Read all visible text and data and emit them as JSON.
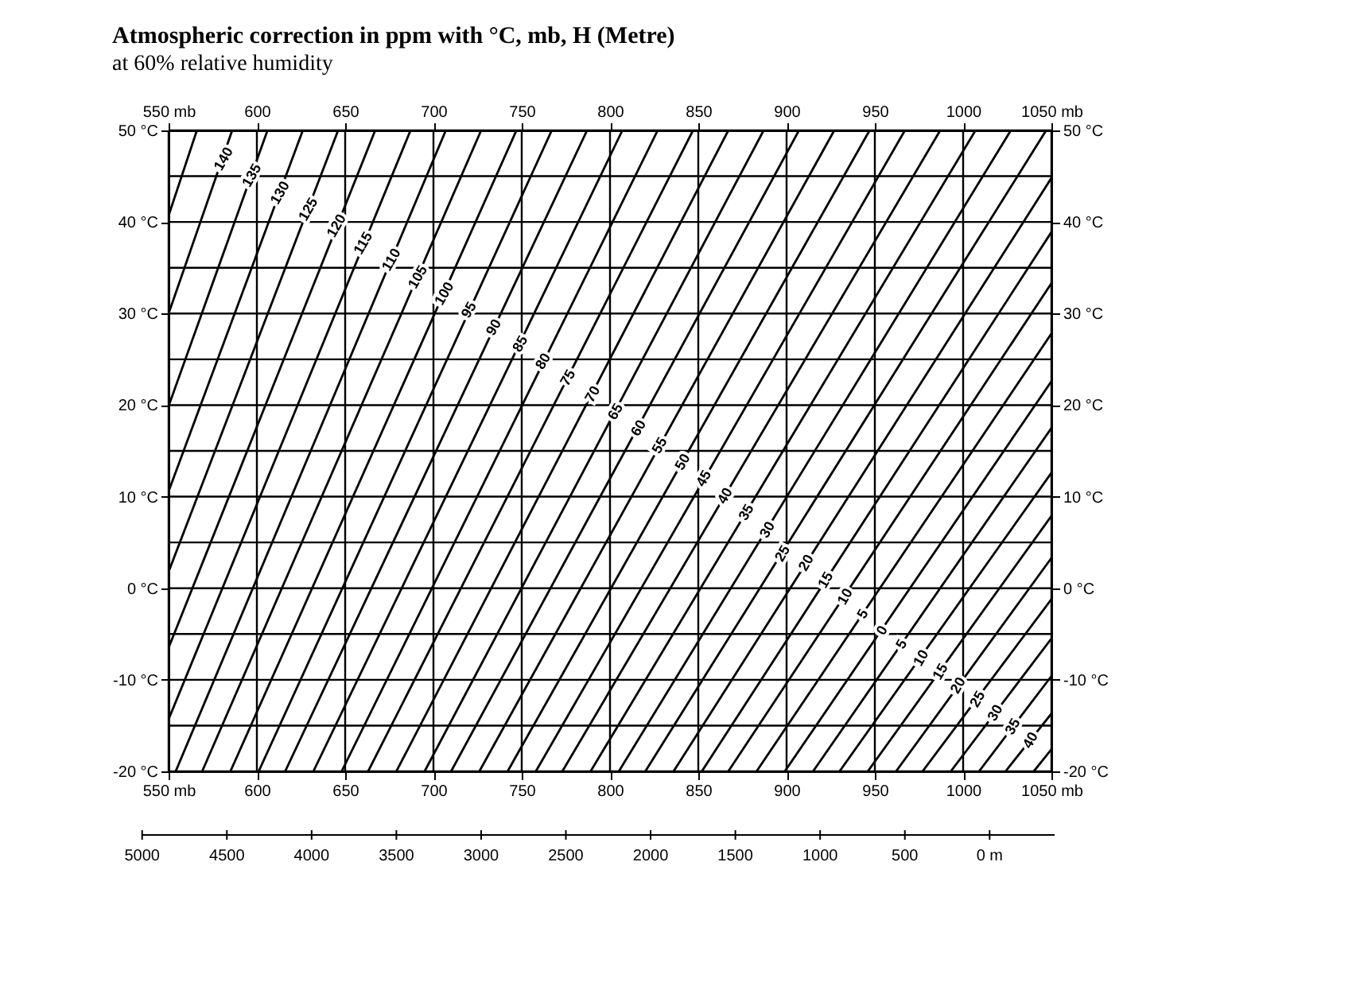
{
  "chart_data": {
    "type": "line",
    "title": "Atmospheric correction in ppm with °C, mb, H (Metre)",
    "subtitle": "at 60% relative humidity",
    "series": [
      {
        "color": "#000000",
        "x": [
          550,
          566
        ],
        "values": [
          40.7,
          50
        ]
      },
      {
        "color": "#000000",
        "x": [
          550,
          586
        ],
        "values": [
          30.0,
          50
        ]
      },
      {
        "color": "#000000",
        "x": [
          550,
          606
        ],
        "values": [
          19.9,
          50
        ]
      },
      {
        "color": "#000000",
        "x": [
          550,
          626
        ],
        "values": [
          10.6,
          50
        ]
      },
      {
        "color": "#000000",
        "x": [
          550,
          646
        ],
        "values": [
          1.8,
          50
        ]
      },
      {
        "color": "#000000",
        "x": [
          550,
          667
        ],
        "values": [
          -6.5,
          50
        ]
      },
      {
        "color": "#000000",
        "x": [
          550,
          687
        ],
        "values": [
          -14.3,
          50
        ]
      },
      {
        "color": "#000000",
        "x": [
          554,
          707
        ],
        "values": [
          -20,
          50
        ]
      },
      {
        "color": "#000000",
        "x": [
          569,
          727
        ],
        "values": [
          -20,
          50
        ]
      },
      {
        "color": "#000000",
        "x": [
          585,
          747
        ],
        "values": [
          -20,
          50
        ]
      },
      {
        "color": "#000000",
        "x": [
          601,
          767
        ],
        "values": [
          -20,
          50
        ]
      },
      {
        "color": "#000000",
        "x": [
          616,
          787
        ],
        "values": [
          -20,
          50
        ]
      },
      {
        "color": "#000000",
        "x": [
          632,
          807
        ],
        "values": [
          -20,
          50
        ]
      },
      {
        "color": "#000000",
        "x": [
          648,
          827
        ],
        "values": [
          -20,
          50
        ]
      },
      {
        "color": "#000000",
        "x": [
          663,
          847
        ],
        "values": [
          -20,
          50
        ]
      },
      {
        "color": "#000000",
        "x": [
          679,
          867
        ],
        "values": [
          -20,
          50
        ]
      },
      {
        "color": "#000000",
        "x": [
          695,
          887
        ],
        "values": [
          -20,
          50
        ]
      },
      {
        "color": "#000000",
        "x": [
          710,
          907
        ],
        "values": [
          -20,
          50
        ]
      },
      {
        "color": "#000000",
        "x": [
          726,
          927
        ],
        "values": [
          -20,
          50
        ]
      },
      {
        "color": "#000000",
        "x": [
          742,
          947
        ],
        "values": [
          -20,
          50
        ]
      },
      {
        "color": "#000000",
        "x": [
          758,
          967
        ],
        "values": [
          -20,
          50
        ]
      },
      {
        "color": "#000000",
        "x": [
          773,
          987
        ],
        "values": [
          -20,
          50
        ]
      },
      {
        "color": "#000000",
        "x": [
          789,
          1007
        ],
        "values": [
          -20,
          50
        ]
      },
      {
        "color": "#000000",
        "x": [
          805,
          1027
        ],
        "values": [
          -20,
          50
        ]
      },
      {
        "color": "#000000",
        "x": [
          820,
          1047
        ],
        "values": [
          -20,
          50
        ]
      },
      {
        "color": "#000000",
        "x": [
          836,
          1050
        ],
        "values": [
          -20,
          44.8
        ]
      },
      {
        "color": "#000000",
        "x": [
          852,
          1050
        ],
        "values": [
          -20,
          38.9
        ]
      },
      {
        "color": "#000000",
        "x": [
          867,
          1050
        ],
        "values": [
          -20,
          33.3
        ]
      },
      {
        "color": "#000000",
        "x": [
          883,
          1050
        ],
        "values": [
          -20,
          27.8
        ]
      },
      {
        "color": "#000000",
        "x": [
          899,
          1050
        ],
        "values": [
          -20,
          22.6
        ]
      },
      {
        "color": "#000000",
        "x": [
          915,
          1050
        ],
        "values": [
          -20,
          17.5
        ]
      },
      {
        "color": "#000000",
        "x": [
          930,
          1050
        ],
        "values": [
          -20,
          12.6
        ]
      },
      {
        "color": "#000000",
        "x": [
          946,
          1050
        ],
        "values": [
          -20,
          7.9
        ]
      },
      {
        "color": "#000000",
        "x": [
          962,
          1050
        ],
        "values": [
          -20,
          3.3
        ]
      },
      {
        "color": "#000000",
        "x": [
          977,
          1050
        ],
        "values": [
          -20,
          -1.2
        ]
      },
      {
        "color": "#000000",
        "x": [
          993,
          1050
        ],
        "values": [
          -20,
          -5.5
        ]
      },
      {
        "color": "#000000",
        "x": [
          1009,
          1050
        ],
        "values": [
          -20,
          -9.6
        ]
      },
      {
        "color": "#000000",
        "x": [
          1024,
          1050
        ],
        "values": [
          -20,
          -13.7
        ]
      },
      {
        "color": "#000000",
        "x": [
          1040,
          1050
        ],
        "values": [
          -20,
          -17.6
        ]
      }
    ],
    "annotations": [
      {
        "text": "140",
        "x": 581,
        "y": 46.9
      },
      {
        "text": "135",
        "x": 597,
        "y": 45.1
      },
      {
        "text": "130",
        "x": 613,
        "y": 43.2
      },
      {
        "text": "125",
        "x": 629,
        "y": 41.4
      },
      {
        "text": "120",
        "x": 645,
        "y": 39.6
      },
      {
        "text": "115",
        "x": 660,
        "y": 37.7
      },
      {
        "text": "110",
        "x": 676,
        "y": 35.9
      },
      {
        "text": "105",
        "x": 691,
        "y": 34.0
      },
      {
        "text": "100",
        "x": 706,
        "y": 32.2
      },
      {
        "text": "95",
        "x": 720,
        "y": 30.4
      },
      {
        "text": "90",
        "x": 734,
        "y": 28.5
      },
      {
        "text": "85",
        "x": 749,
        "y": 26.7
      },
      {
        "text": "80",
        "x": 762,
        "y": 24.8
      },
      {
        "text": "75",
        "x": 776,
        "y": 23.0
      },
      {
        "text": "70",
        "x": 790,
        "y": 21.2
      },
      {
        "text": "65",
        "x": 803,
        "y": 19.3
      },
      {
        "text": "60",
        "x": 816,
        "y": 17.5
      },
      {
        "text": "55",
        "x": 828,
        "y": 15.6
      },
      {
        "text": "50",
        "x": 841,
        "y": 13.8
      },
      {
        "text": "45",
        "x": 853,
        "y": 12.0
      },
      {
        "text": "40",
        "x": 865,
        "y": 10.1
      },
      {
        "text": "35",
        "x": 877,
        "y": 8.3
      },
      {
        "text": "30",
        "x": 889,
        "y": 6.4
      },
      {
        "text": "25",
        "x": 897.5,
        "y": 3.8
      },
      {
        "text": "20",
        "x": 911,
        "y": 2.8
      },
      {
        "text": "15",
        "x": 922,
        "y": 0.9
      },
      {
        "text": "10",
        "x": 933,
        "y": -0.9
      },
      {
        "text": "5",
        "x": 943,
        "y": -2.8
      },
      {
        "text": "0",
        "x": 954,
        "y": -4.6
      },
      {
        "text": "5",
        "x": 965,
        "y": -6.1
      },
      {
        "text": "10",
        "x": 976,
        "y": -7.6
      },
      {
        "text": "15",
        "x": 987,
        "y": -9.1
      },
      {
        "text": "20",
        "x": 997,
        "y": -10.6
      },
      {
        "text": "25",
        "x": 1008,
        "y": -12.1
      },
      {
        "text": "30",
        "x": 1018,
        "y": -13.6
      },
      {
        "text": "35",
        "x": 1028,
        "y": -15.1
      },
      {
        "text": "40",
        "x": 1038,
        "y": -16.6
      },
      "5000",
      "4500",
      "4000",
      "3500",
      "3000",
      "2500",
      "2000",
      "1500",
      "1000",
      "500",
      "0 m"
    ],
    "xlim": [
      550,
      1050
    ],
    "xticks": [
      {
        "value": 550,
        "label": "550 mb"
      },
      600,
      650,
      700,
      750,
      800,
      850,
      900,
      950,
      1000,
      {
        "value": 1050,
        "label": "1050 mb"
      }
    ],
    "x2lim": [
      550,
      1050
    ],
    "x2ticks": [
      {
        "value": 550,
        "label": "550 mb"
      },
      600,
      650,
      700,
      750,
      800,
      850,
      900,
      950,
      1000,
      {
        "value": 1050,
        "label": "1050 mb"
      }
    ],
    "ylim": [
      -20,
      50
    ],
    "yticks": [
      {
        "value": -20,
        "label": "-20 °C"
      },
      {
        "value": -15,
        "label": null
      },
      {
        "value": -10,
        "label": "-10 °C"
      },
      {
        "value": -5,
        "label": null
      },
      {
        "value": 0,
        "label": "0 °C"
      },
      {
        "value": 5,
        "label": null
      },
      {
        "value": 10,
        "label": "10 °C"
      },
      {
        "value": 15,
        "label": null
      },
      {
        "value": 20,
        "label": "20 °C"
      },
      {
        "value": 25,
        "label": null
      },
      {
        "value": 30,
        "label": "30 °C"
      },
      {
        "value": 35,
        "label": null
      },
      {
        "value": 40,
        "label": "40 °C"
      },
      {
        "value": 45,
        "label": null
      },
      {
        "value": 50,
        "label": "50 °C"
      }
    ],
    "y2lim": [
      -20,
      50
    ],
    "y2ticks": [
      {
        "value": -20,
        "label": "-20 °C"
      },
      {
        "value": -10,
        "label": "-10 °C"
      },
      {
        "value": 0,
        "label": "0 °C"
      },
      {
        "value": 10,
        "label": "10 °C"
      },
      {
        "value": 20,
        "label": "20 °C"
      },
      {
        "value": 30,
        "label": "30 °C"
      },
      {
        "value": 40,
        "label": "40 °C"
      },
      {
        "value": 50,
        "label": "50 °C"
      }
    ],
    "grid": true,
    "legend": false
  }
}
